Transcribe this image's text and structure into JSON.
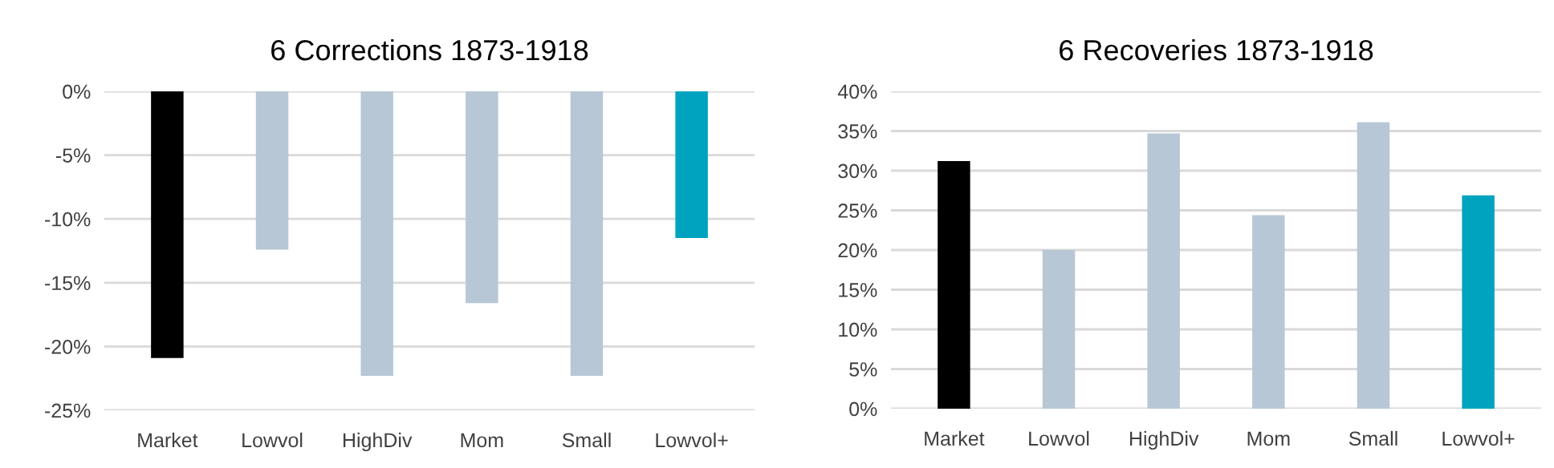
{
  "chart_data": [
    {
      "type": "bar",
      "title": "6 Corrections 1873-1918",
      "categories": [
        "Market",
        "Lowvol",
        "HighDiv",
        "Mom",
        "Small",
        "Lowvol+"
      ],
      "values": [
        -20.9,
        -12.4,
        -22.3,
        -16.6,
        -22.3,
        -11.5
      ],
      "colors": [
        "#000000",
        "#b7c7d6",
        "#b7c7d6",
        "#b7c7d6",
        "#b7c7d6",
        "#00a3bf"
      ],
      "ylim": [
        -25,
        0
      ],
      "yticks": [
        {
          "value": 0,
          "label": "0%"
        },
        {
          "value": -5,
          "label": "-5%"
        },
        {
          "value": -10,
          "label": "-10%"
        },
        {
          "value": -15,
          "label": "-15%"
        },
        {
          "value": -20,
          "label": "-20%"
        },
        {
          "value": -25,
          "label": "-25%"
        }
      ],
      "grid": "y"
    },
    {
      "type": "bar",
      "title": "6 Recoveries 1873-1918",
      "categories": [
        "Market",
        "Lowvol",
        "HighDiv",
        "Mom",
        "Small",
        "Lowvol+"
      ],
      "values": [
        31.2,
        20.0,
        34.7,
        24.4,
        36.1,
        26.9
      ],
      "colors": [
        "#000000",
        "#b7c7d6",
        "#b7c7d6",
        "#b7c7d6",
        "#b7c7d6",
        "#00a3bf"
      ],
      "ylim": [
        0,
        40
      ],
      "yticks": [
        {
          "value": 0,
          "label": "0%"
        },
        {
          "value": 5,
          "label": "5%"
        },
        {
          "value": 10,
          "label": "10%"
        },
        {
          "value": 15,
          "label": "15%"
        },
        {
          "value": 20,
          "label": "20%"
        },
        {
          "value": 25,
          "label": "25%"
        },
        {
          "value": 30,
          "label": "30%"
        },
        {
          "value": 35,
          "label": "35%"
        },
        {
          "value": 40,
          "label": "40%"
        }
      ],
      "grid": "y"
    }
  ]
}
